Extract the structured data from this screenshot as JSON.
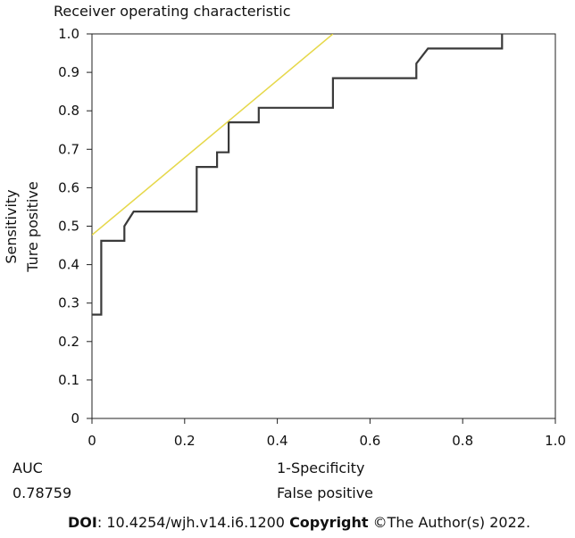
{
  "chart_data": {
    "type": "line",
    "title": "Receiver operating characteristic",
    "xlabel": [
      "1-Specificity",
      "False positive"
    ],
    "ylabel": [
      "Sensitivity",
      "Ture positive"
    ],
    "xlim": [
      0,
      1.0
    ],
    "ylim": [
      0,
      1.0
    ],
    "xticks": [
      "0",
      "0.2",
      "0.4",
      "0.6",
      "0.8",
      "1.0"
    ],
    "yticks": [
      "0",
      "0.1",
      "0.2",
      "0.3",
      "0.4",
      "0.5",
      "0.6",
      "0.7",
      "0.8",
      "0.9",
      "1.0"
    ],
    "grid": false,
    "series": [
      {
        "color": "#3a3a3a",
        "x": [
          0.0,
          0.02,
          0.02,
          0.07,
          0.07,
          0.09,
          0.226,
          0.226,
          0.27,
          0.27,
          0.295,
          0.295,
          0.36,
          0.36,
          0.52,
          0.52,
          0.7,
          0.7,
          0.725,
          0.885,
          0.885
        ],
        "y": [
          0.27,
          0.27,
          0.462,
          0.462,
          0.5,
          0.538,
          0.538,
          0.654,
          0.654,
          0.692,
          0.692,
          0.77,
          0.77,
          0.808,
          0.808,
          0.885,
          0.885,
          0.923,
          0.962,
          0.962,
          1.0
        ]
      },
      {
        "color": "#e6d84a",
        "x": [
          0.0,
          0.52
        ],
        "y": [
          0.477,
          1.0
        ]
      }
    ],
    "auc_label": "AUC",
    "auc_value": "0.78759"
  },
  "footer": {
    "doi_label": "DOI",
    "doi_value": ": 10.4254/wjh.v14.i6.1200 ",
    "copyright_label": "Copyright",
    "copyright_value": " ©The Author(s) 2022."
  }
}
